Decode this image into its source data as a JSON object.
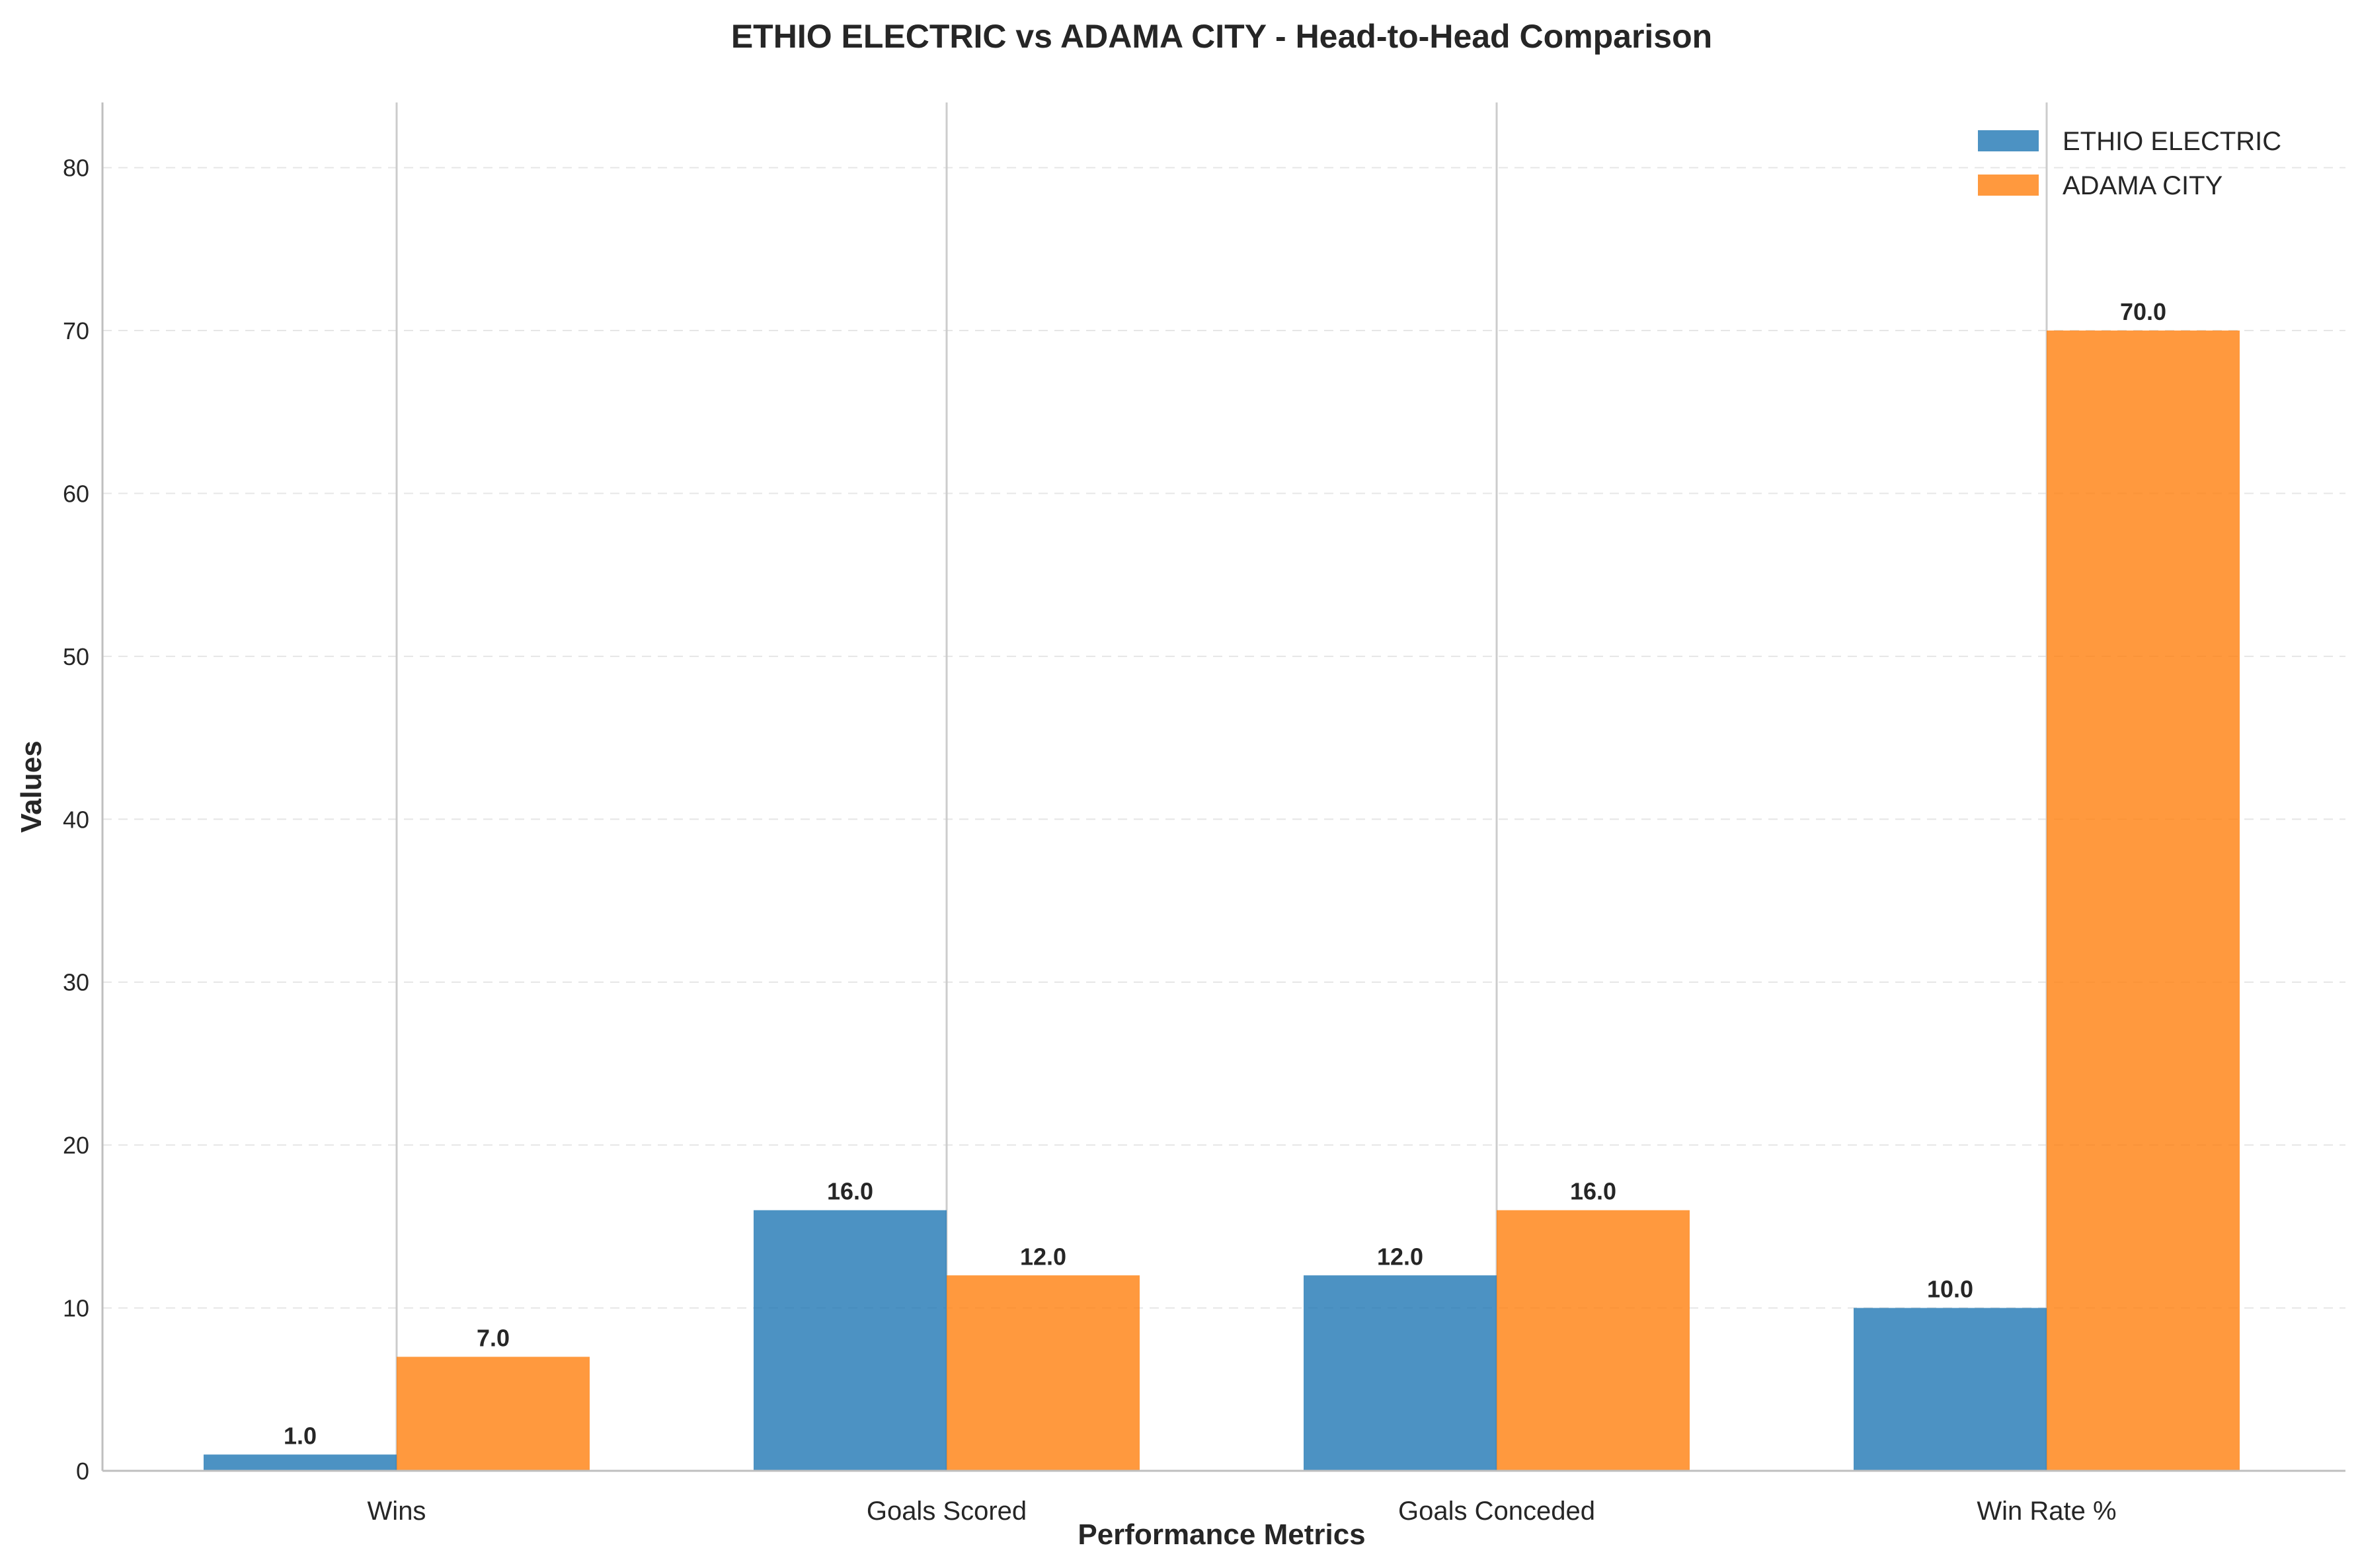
{
  "chart_data": {
    "type": "bar",
    "title": "ETHIO ELECTRIC vs ADAMA CITY - Head-to-Head Comparison",
    "xlabel": "Performance Metrics",
    "ylabel": "Values",
    "categories": [
      "Wins",
      "Goals Scored",
      "Goals Conceded",
      "Win Rate %"
    ],
    "series": [
      {
        "name": "ETHIO ELECTRIC",
        "color": "#1f77b4",
        "values": [
          1.0,
          16.0,
          12.0,
          10.0
        ]
      },
      {
        "name": "ADAMA CITY",
        "color": "#ff7f0e",
        "values": [
          7.0,
          12.0,
          16.0,
          70.0
        ]
      }
    ],
    "value_labels": [
      [
        "1.0",
        "16.0",
        "12.0",
        "10.0"
      ],
      [
        "7.0",
        "12.0",
        "16.0",
        "70.0"
      ]
    ],
    "ylim": [
      0,
      84
    ],
    "yticks": [
      0,
      10,
      20,
      30,
      40,
      50,
      60,
      70,
      80
    ],
    "grid": "y dashed",
    "legend": "top-right"
  }
}
